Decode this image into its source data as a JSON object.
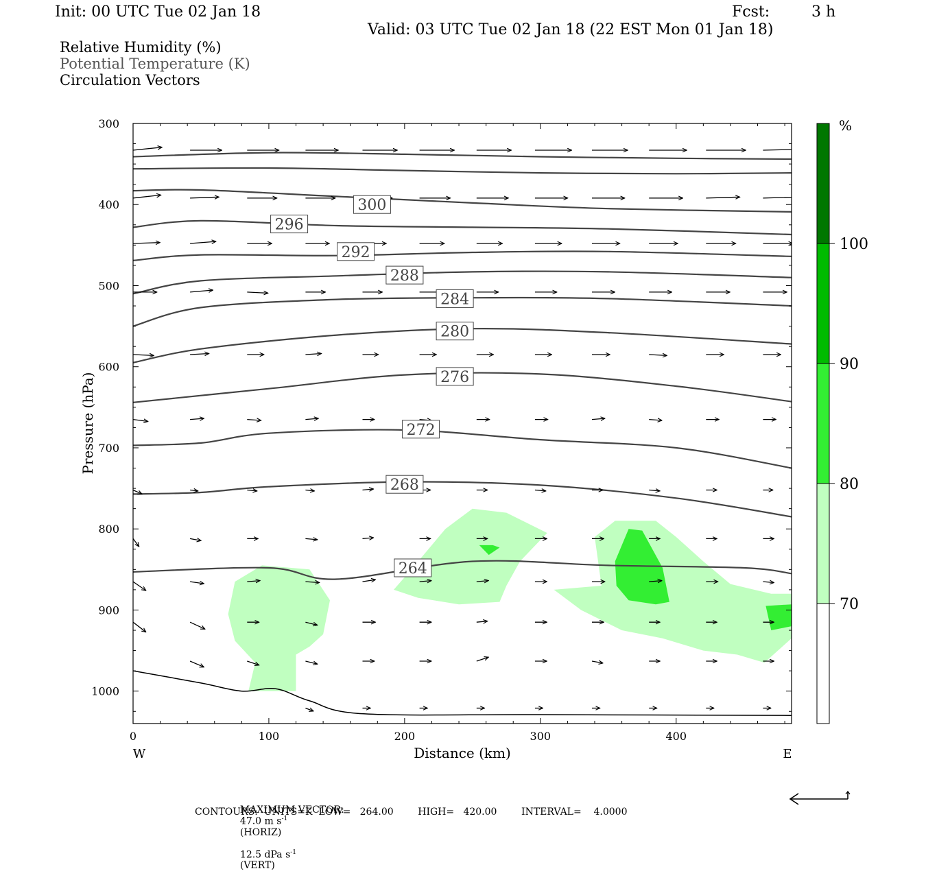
{
  "header": {
    "init": "Init: 00 UTC Tue 02 Jan 18",
    "fcst_label": "Fcst:",
    "fcst_value": "3 h",
    "valid": "Valid: 03 UTC Tue 02 Jan 18 (22 EST Mon 01 Jan 18)"
  },
  "legend": {
    "rh": "Relative Humidity (%)",
    "theta": "Potential Temperature (K)",
    "vectors": "Circulation Vectors"
  },
  "footer": {
    "max_vector_label": "MAXIMUM VECTOR:",
    "horiz": "47.0 m s",
    "horiz_unit": "(HORIZ)",
    "vert": "12.5 dPa s",
    "vert_unit": "(VERT)",
    "exponent": "-1",
    "contours": "CONTOURS:  UNITS=K  LOW=   264.00        HIGH=   420.00        INTERVAL=    4.0000"
  },
  "colors": {
    "rh70": "#c0ffc0",
    "rh80": "#33ee33",
    "rh90": "#00bb00",
    "rh100": "#007700",
    "contour": "#444444"
  },
  "chart_data": {
    "type": "cross-section",
    "xlabel": "Distance (km)",
    "ylabel": "Pressure (hPa)",
    "xlim": [
      0,
      485
    ],
    "ylim": [
      1040,
      300
    ],
    "x_ticks": [
      "0",
      "100",
      "200",
      "300",
      "400"
    ],
    "x_tick_values": [
      0,
      100,
      200,
      300,
      400
    ],
    "y_ticks": [
      "300",
      "400",
      "500",
      "600",
      "700",
      "800",
      "900",
      "1000"
    ],
    "y_tick_values": [
      300,
      400,
      500,
      600,
      700,
      800,
      900,
      1000
    ],
    "x_end_labels": {
      "left": "W",
      "right": "E"
    },
    "colorbar": {
      "unit": "%",
      "labels": [
        "70",
        "80",
        "90",
        "100"
      ],
      "levels": [
        60,
        70,
        80,
        90,
        100,
        110
      ]
    },
    "contour_labels": [
      {
        "text": "300",
        "x": 176,
        "p": 400
      },
      {
        "text": "296",
        "x": 115,
        "p": 424
      },
      {
        "text": "292",
        "x": 164,
        "p": 458
      },
      {
        "text": "288",
        "x": 200,
        "p": 487
      },
      {
        "text": "284",
        "x": 237,
        "p": 516
      },
      {
        "text": "280",
        "x": 237,
        "p": 556
      },
      {
        "text": "276",
        "x": 237,
        "p": 612
      },
      {
        "text": "272",
        "x": 212,
        "p": 677
      },
      {
        "text": "268",
        "x": 200,
        "p": 745
      },
      {
        "text": "264",
        "x": 206,
        "p": 848
      }
    ],
    "isentropes": [
      [
        [
          0,
          341
        ],
        [
          100,
          336
        ],
        [
          200,
          338
        ],
        [
          300,
          341
        ],
        [
          400,
          343
        ],
        [
          485,
          344
        ]
      ],
      [
        [
          0,
          356
        ],
        [
          100,
          355
        ],
        [
          200,
          358
        ],
        [
          300,
          361
        ],
        [
          400,
          362
        ],
        [
          485,
          361
        ]
      ],
      [
        [
          0,
          383
        ],
        [
          50,
          382
        ],
        [
          150,
          390
        ],
        [
          250,
          398
        ],
        [
          350,
          405
        ],
        [
          485,
          409
        ]
      ],
      [
        [
          0,
          428
        ],
        [
          50,
          420
        ],
        [
          150,
          426
        ],
        [
          250,
          428
        ],
        [
          350,
          430
        ],
        [
          485,
          437
        ]
      ],
      [
        [
          0,
          469
        ],
        [
          50,
          462
        ],
        [
          150,
          463
        ],
        [
          250,
          459
        ],
        [
          350,
          458
        ],
        [
          485,
          464
        ]
      ],
      [
        [
          0,
          510
        ],
        [
          50,
          494
        ],
        [
          150,
          488
        ],
        [
          250,
          483
        ],
        [
          350,
          483
        ],
        [
          485,
          490
        ]
      ],
      [
        [
          0,
          550
        ],
        [
          50,
          527
        ],
        [
          150,
          517
        ],
        [
          250,
          515
        ],
        [
          350,
          516
        ],
        [
          485,
          525
        ]
      ],
      [
        [
          0,
          595
        ],
        [
          50,
          578
        ],
        [
          150,
          561
        ],
        [
          250,
          553
        ],
        [
          350,
          558
        ],
        [
          485,
          572
        ]
      ],
      [
        [
          0,
          644
        ],
        [
          100,
          627
        ],
        [
          200,
          610
        ],
        [
          300,
          609
        ],
        [
          400,
          624
        ],
        [
          485,
          643
        ]
      ],
      [
        [
          0,
          697
        ],
        [
          50,
          694
        ],
        [
          100,
          682
        ],
        [
          200,
          678
        ],
        [
          300,
          690
        ],
        [
          400,
          700
        ],
        [
          485,
          725
        ]
      ],
      [
        [
          0,
          757
        ],
        [
          50,
          755
        ],
        [
          100,
          748
        ],
        [
          200,
          742
        ],
        [
          300,
          746
        ],
        [
          400,
          762
        ],
        [
          485,
          785
        ]
      ],
      [
        [
          0,
          853
        ],
        [
          100,
          848
        ],
        [
          150,
          862
        ],
        [
          250,
          840
        ],
        [
          350,
          845
        ],
        [
          450,
          848
        ],
        [
          485,
          855
        ]
      ]
    ],
    "surface": [
      [
        0,
        975
      ],
      [
        50,
        990
      ],
      [
        80,
        1000
      ],
      [
        105,
        997
      ],
      [
        130,
        1012
      ],
      [
        170,
        1028
      ],
      [
        300,
        1029
      ],
      [
        485,
        1030
      ]
    ],
    "rh_regions": [
      {
        "level": 70,
        "points": [
          [
            75,
            865
          ],
          [
            95,
            845
          ],
          [
            130,
            850
          ],
          [
            145,
            888
          ],
          [
            140,
            930
          ],
          [
            130,
            945
          ],
          [
            120,
            955
          ],
          [
            120,
            1000
          ],
          [
            105,
            1000
          ],
          [
            85,
            1000
          ],
          [
            90,
            965
          ],
          [
            75,
            938
          ],
          [
            70,
            905
          ]
        ]
      },
      {
        "level": 70,
        "points": [
          [
            192,
            875
          ],
          [
            205,
            850
          ],
          [
            230,
            800
          ],
          [
            250,
            775
          ],
          [
            275,
            780
          ],
          [
            305,
            805
          ],
          [
            285,
            840
          ],
          [
            275,
            870
          ],
          [
            270,
            890
          ],
          [
            240,
            893
          ],
          [
            210,
            885
          ]
        ]
      },
      {
        "level": 70,
        "points": [
          [
            340,
            810
          ],
          [
            355,
            790
          ],
          [
            385,
            790
          ],
          [
            400,
            810
          ],
          [
            420,
            840
          ],
          [
            440,
            868
          ],
          [
            470,
            880
          ],
          [
            485,
            880
          ],
          [
            485,
            935
          ],
          [
            465,
            965
          ],
          [
            445,
            955
          ],
          [
            420,
            950
          ],
          [
            390,
            935
          ],
          [
            360,
            925
          ],
          [
            330,
            900
          ],
          [
            310,
            875
          ],
          [
            345,
            870
          ]
        ]
      },
      {
        "level": 80,
        "points": [
          [
            255,
            820
          ],
          [
            265,
            820
          ],
          [
            270,
            823
          ],
          [
            262,
            832
          ]
        ]
      },
      {
        "level": 80,
        "points": [
          [
            355,
            840
          ],
          [
            365,
            800
          ],
          [
            375,
            802
          ],
          [
            390,
            848
          ],
          [
            395,
            890
          ],
          [
            385,
            893
          ],
          [
            365,
            888
          ],
          [
            356,
            870
          ]
        ]
      },
      {
        "level": 80,
        "points": [
          [
            466,
            895
          ],
          [
            485,
            893
          ],
          [
            485,
            920
          ],
          [
            470,
            925
          ]
        ]
      }
    ],
    "vectors": [
      {
        "p": 333,
        "x": [
          0,
          42,
          84,
          127,
          169,
          211,
          253,
          296,
          338,
          380,
          422,
          464
        ],
        "u": [
          29,
          32,
          32,
          33,
          35,
          35,
          35,
          37,
          36,
          38,
          40,
          41
        ],
        "w": [
          -3,
          0,
          0,
          0,
          0,
          0,
          0,
          0,
          0,
          0,
          0,
          -1
        ]
      },
      {
        "p": 392,
        "x": [
          0,
          42,
          84,
          127,
          169,
          211,
          253,
          296,
          338,
          380,
          422,
          464
        ],
        "u": [
          28,
          29,
          30,
          30,
          30,
          31,
          32,
          33,
          33,
          34,
          34,
          36
        ],
        "w": [
          -3,
          -1,
          0,
          0,
          0,
          0,
          0,
          0,
          0,
          0,
          -1,
          -1
        ]
      },
      {
        "p": 448,
        "x": [
          0,
          42,
          84,
          127,
          169,
          211,
          253,
          296,
          338,
          380,
          422,
          464
        ],
        "u": [
          27,
          26,
          25,
          24,
          24,
          25,
          26,
          27,
          28,
          29,
          30,
          30
        ],
        "w": [
          -1,
          -2,
          0,
          0,
          0,
          0,
          0,
          0,
          0,
          0,
          0,
          0
        ]
      },
      {
        "p": 508,
        "x": [
          0,
          42,
          84,
          127,
          169,
          211,
          253,
          296,
          338,
          380,
          422,
          464
        ],
        "u": [
          24,
          23,
          21,
          20,
          20,
          21,
          22,
          22,
          23,
          23,
          24,
          24
        ],
        "w": [
          0,
          -2,
          1,
          0,
          0,
          0,
          0,
          0,
          0,
          0,
          0,
          0
        ]
      },
      {
        "p": 585,
        "x": [
          0,
          42,
          84,
          127,
          169,
          211,
          253,
          296,
          338,
          380,
          422,
          464
        ],
        "u": [
          21,
          19,
          17,
          16,
          16,
          17,
          17,
          17,
          18,
          18,
          18,
          18
        ],
        "w": [
          1,
          -1,
          0,
          -1,
          0,
          0,
          0,
          0,
          0,
          1,
          0,
          0
        ]
      },
      {
        "p": 665,
        "x": [
          0,
          42,
          84,
          127,
          169,
          211,
          253,
          296,
          338,
          380,
          422,
          464
        ],
        "u": [
          15,
          14,
          14,
          13,
          12,
          12,
          13,
          13,
          13,
          13,
          13,
          13
        ],
        "w": [
          2,
          -1,
          1,
          -1,
          0,
          1,
          0,
          0,
          -1,
          1,
          0,
          0
        ]
      },
      {
        "p": 752,
        "x": [
          0,
          42,
          84,
          127,
          169,
          211,
          253,
          296,
          338,
          380,
          422,
          464
        ],
        "u": [
          9,
          8,
          10,
          9,
          11,
          11,
          11,
          11,
          11,
          11,
          11,
          10
        ],
        "w": [
          4,
          1,
          1,
          1,
          -1,
          0,
          0,
          1,
          0,
          1,
          0,
          0
        ]
      },
      {
        "p": 812,
        "x": [
          0,
          42,
          84,
          127,
          169,
          211,
          253,
          296,
          338,
          380,
          422,
          464
        ],
        "u": [
          6,
          11,
          11,
          12,
          11,
          11,
          11,
          12,
          12,
          11,
          11,
          11
        ],
        "w": [
          8,
          2,
          0,
          1,
          -1,
          0,
          0,
          0,
          0,
          0,
          0,
          0
        ]
      },
      {
        "p": 865,
        "x": [
          0,
          42,
          84,
          127,
          169,
          211,
          253,
          296,
          338,
          380,
          422,
          464
        ],
        "u": [
          13,
          14,
          13,
          14,
          13,
          12,
          12,
          12,
          13,
          13,
          12,
          11
        ],
        "w": [
          9,
          2,
          -1,
          1,
          -2,
          -1,
          -1,
          0,
          0,
          -1,
          0,
          1
        ]
      },
      {
        "p": 915,
        "x": [
          0,
          42,
          84,
          127,
          169,
          211,
          253,
          296,
          338,
          380,
          422,
          464
        ],
        "u": [
          13,
          15,
          12,
          12,
          13,
          12,
          11,
          12,
          12,
          11,
          11,
          11
        ],
        "w": [
          10,
          7,
          0,
          3,
          0,
          0,
          -1,
          0,
          0,
          0,
          0,
          0
        ]
      },
      {
        "p": 963,
        "x": [
          42,
          84,
          127,
          169,
          211,
          253,
          296,
          338,
          380,
          422,
          464
        ],
        "u": [
          14,
          12,
          12,
          12,
          12,
          12,
          12,
          11,
          11,
          11,
          11
        ],
        "w": [
          6,
          4,
          3,
          0,
          0,
          -4,
          0,
          2,
          0,
          0,
          0
        ]
      },
      {
        "p": 1021,
        "x": [
          127,
          169,
          211,
          253,
          296,
          338,
          380,
          422,
          464
        ],
        "u": [
          8,
          8,
          8,
          8,
          8,
          8,
          8,
          8,
          8
        ],
        "w": [
          3,
          0,
          0,
          0,
          0,
          0,
          0,
          0,
          0
        ]
      }
    ]
  }
}
